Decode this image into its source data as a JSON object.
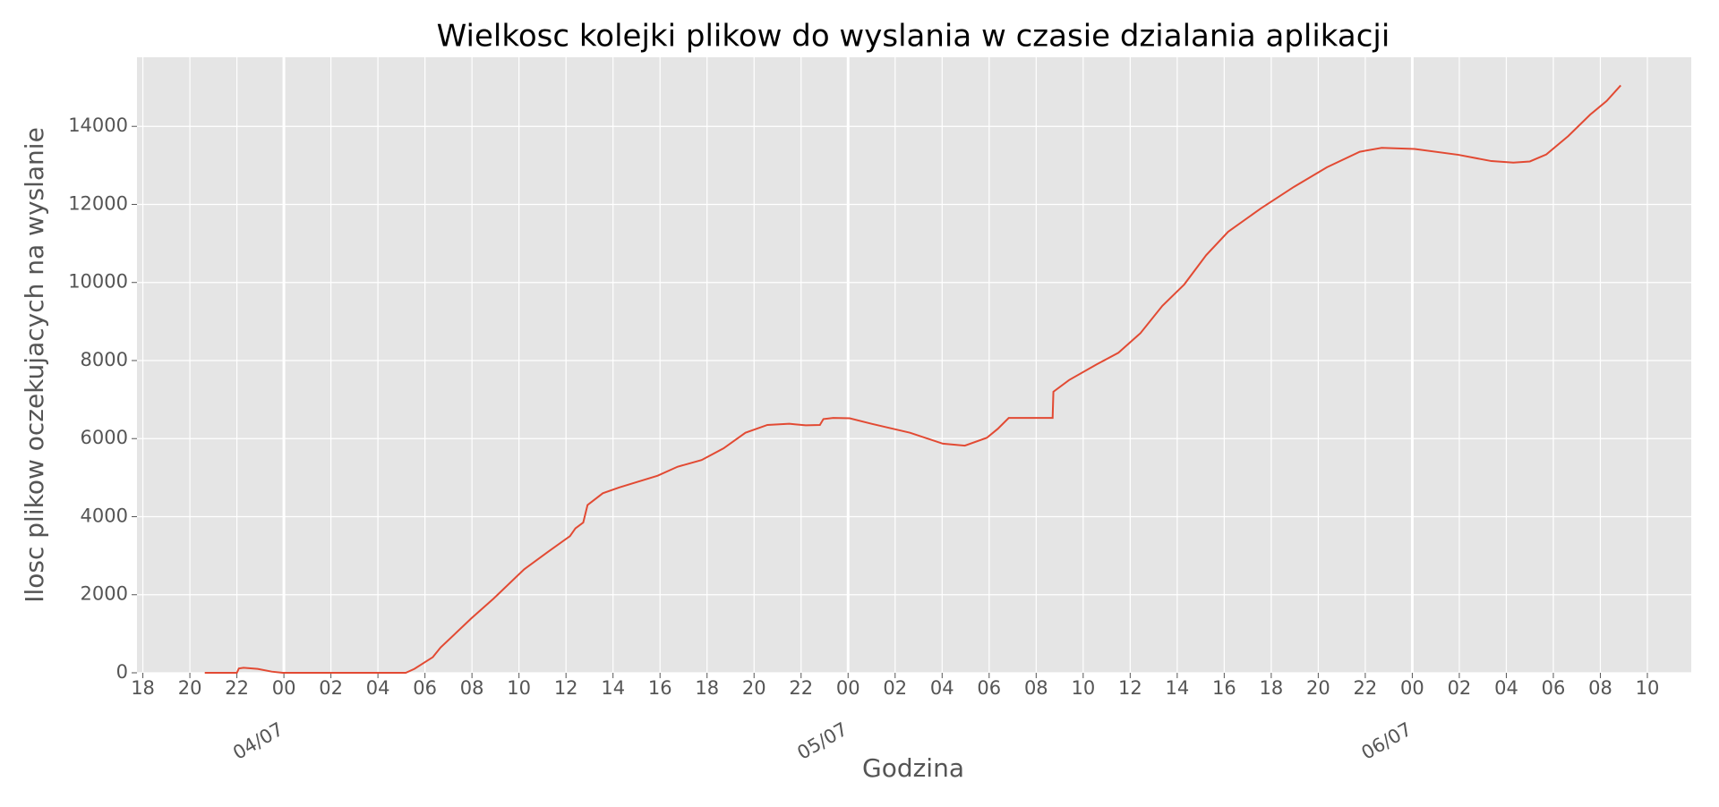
{
  "chart_data": {
    "type": "line",
    "title": "Wielkosc kolejki plikow do wyslania w czasie dzialania aplikacji",
    "x_label": "Godzina",
    "y_label": "Ilosc plikow oczekujacych na wyslanie",
    "color": "#e24a33",
    "grid": true,
    "x": [
      "03/07 20:38",
      "03/07 22:00",
      "03/07 22:05",
      "03/07 22:17",
      "03/07 22:53",
      "03/07 23:29",
      "03/07 23:57",
      "04/07 05:11",
      "04/07 05:33",
      "04/07 06:20",
      "04/07 06:40",
      "04/07 07:59",
      "04/07 08:55",
      "04/07 10:13",
      "04/07 11:14",
      "04/07 12:10",
      "04/07 12:24",
      "04/07 12:44",
      "04/07 12:55",
      "04/07 13:34",
      "04/07 14:16",
      "04/07 15:54",
      "04/07 16:45",
      "04/07 17:46",
      "04/07 18:42",
      "04/07 19:38",
      "04/07 20:34",
      "04/07 21:30",
      "04/07 22:12",
      "04/07 22:48",
      "04/07 22:57",
      "04/07 23:22",
      "05/07 00:04",
      "05/07 01:00",
      "05/07 02:38",
      "05/07 04:02",
      "05/07 04:58",
      "05/07 05:54",
      "05/07 06:22",
      "05/07 06:50",
      "05/07 08:42",
      "05/07 08:44",
      "05/07 09:24",
      "05/07 10:34",
      "05/07 11:30",
      "05/07 12:26",
      "05/07 13:22",
      "05/07 14:18",
      "05/07 15:14",
      "05/07 16:10",
      "05/07 17:34",
      "05/07 18:58",
      "05/07 20:22",
      "05/07 21:46",
      "05/07 22:42",
      "06/07 00:06",
      "06/07 01:58",
      "06/07 03:22",
      "06/07 04:18",
      "06/07 05:00",
      "06/07 05:42",
      "06/07 06:38",
      "06/07 07:34",
      "06/07 08:16",
      "06/07 08:52"
    ],
    "values": [
      0,
      0,
      110,
      130,
      100,
      30,
      0,
      0,
      100,
      400,
      650,
      1400,
      1900,
      2650,
      3100,
      3500,
      3700,
      3850,
      4300,
      4600,
      4750,
      5050,
      5280,
      5450,
      5750,
      6150,
      6350,
      6380,
      6340,
      6350,
      6500,
      6530,
      6520,
      6380,
      6150,
      5870,
      5820,
      6020,
      6250,
      6530,
      6530,
      7200,
      7500,
      7900,
      8200,
      8700,
      9400,
      9950,
      10700,
      11300,
      11900,
      12450,
      12950,
      13350,
      13450,
      13420,
      13270,
      13110,
      13070,
      13100,
      13280,
      13750,
      14300,
      14650,
      15050
    ],
    "xlim": [
      "03/07 17:45",
      "06/07 11:52"
    ],
    "ylim": [
      0,
      15770
    ],
    "yticks": [
      0,
      2000,
      4000,
      6000,
      8000,
      10000,
      12000,
      14000
    ],
    "xticks": [
      {
        "value": "03/07 18:00",
        "label": "18"
      },
      {
        "value": "03/07 20:00",
        "label": "20"
      },
      {
        "value": "03/07 22:00",
        "label": "22"
      },
      {
        "value": "04/07 00:00",
        "label": "00"
      },
      {
        "value": "04/07 02:00",
        "label": "02"
      },
      {
        "value": "04/07 04:00",
        "label": "04"
      },
      {
        "value": "04/07 06:00",
        "label": "06"
      },
      {
        "value": "04/07 08:00",
        "label": "08"
      },
      {
        "value": "04/07 10:00",
        "label": "10"
      },
      {
        "value": "04/07 12:00",
        "label": "12"
      },
      {
        "value": "04/07 14:00",
        "label": "14"
      },
      {
        "value": "04/07 16:00",
        "label": "16"
      },
      {
        "value": "04/07 18:00",
        "label": "18"
      },
      {
        "value": "04/07 20:00",
        "label": "20"
      },
      {
        "value": "04/07 22:00",
        "label": "22"
      },
      {
        "value": "05/07 00:00",
        "label": "00"
      },
      {
        "value": "05/07 02:00",
        "label": "02"
      },
      {
        "value": "05/07 04:00",
        "label": "04"
      },
      {
        "value": "05/07 06:00",
        "label": "06"
      },
      {
        "value": "05/07 08:00",
        "label": "08"
      },
      {
        "value": "05/07 10:00",
        "label": "10"
      },
      {
        "value": "05/07 12:00",
        "label": "12"
      },
      {
        "value": "05/07 14:00",
        "label": "14"
      },
      {
        "value": "05/07 16:00",
        "label": "16"
      },
      {
        "value": "05/07 18:00",
        "label": "18"
      },
      {
        "value": "05/07 20:00",
        "label": "20"
      },
      {
        "value": "05/07 22:00",
        "label": "22"
      },
      {
        "value": "06/07 00:00",
        "label": "00"
      },
      {
        "value": "06/07 02:00",
        "label": "02"
      },
      {
        "value": "06/07 04:00",
        "label": "04"
      },
      {
        "value": "06/07 06:00",
        "label": "06"
      },
      {
        "value": "06/07 08:00",
        "label": "08"
      },
      {
        "value": "06/07 10:00",
        "label": "10"
      }
    ],
    "xticks_major": [
      {
        "value": "04/07 00:00",
        "label": "04/07"
      },
      {
        "value": "05/07 00:00",
        "label": "05/07"
      },
      {
        "value": "06/07 00:00",
        "label": "06/07"
      }
    ]
  }
}
